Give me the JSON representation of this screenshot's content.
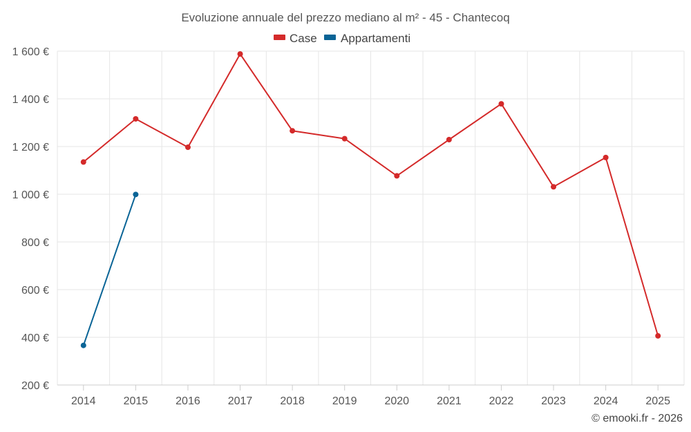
{
  "chart_data": {
    "type": "line",
    "title": "Evoluzione annuale del prezzo mediano al m² - 45 - Chantecoq",
    "categories": [
      "2014",
      "2015",
      "2016",
      "2017",
      "2018",
      "2019",
      "2020",
      "2021",
      "2022",
      "2023",
      "2024",
      "2025"
    ],
    "ylim": [
      200,
      1600
    ],
    "yticks": [
      200,
      400,
      600,
      800,
      1000,
      1200,
      1400,
      1600
    ],
    "ytick_labels": [
      "200 €",
      "400 €",
      "600 €",
      "800 €",
      "1 000 €",
      "1 200 €",
      "1 400 €",
      "1 600 €"
    ],
    "grid": true,
    "legend_position": "top-center",
    "series": [
      {
        "name": "Case",
        "color": "#d42a2a",
        "values": [
          1135,
          1316,
          1197,
          1588,
          1266,
          1233,
          1077,
          1229,
          1379,
          1031,
          1154,
          406
        ]
      },
      {
        "name": "Appartamenti",
        "color": "#0a6496",
        "values": [
          366,
          999,
          null,
          null,
          null,
          null,
          null,
          null,
          null,
          null,
          null,
          null
        ]
      }
    ]
  },
  "credit": "© emooki.fr - 2026"
}
